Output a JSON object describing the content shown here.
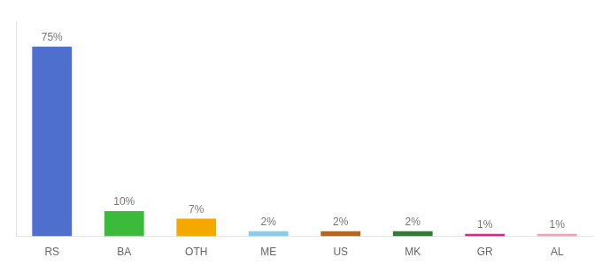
{
  "chart_data": {
    "type": "bar",
    "categories": [
      "RS",
      "BA",
      "OTH",
      "ME",
      "US",
      "MK",
      "GR",
      "AL"
    ],
    "values": [
      75,
      10,
      7,
      2,
      2,
      2,
      1,
      1
    ],
    "value_labels": [
      "75%",
      "10%",
      "7%",
      "2%",
      "2%",
      "2%",
      "1%",
      "1%"
    ],
    "data_labels": true,
    "colors": [
      "#4e6fce",
      "#3cba3c",
      "#f5a800",
      "#87ceeb",
      "#b5651d",
      "#2e7d32",
      "#e91e8c",
      "#f4a0b0"
    ],
    "ylim": [
      0,
      85
    ],
    "grid": false,
    "tick_labels": "x"
  }
}
